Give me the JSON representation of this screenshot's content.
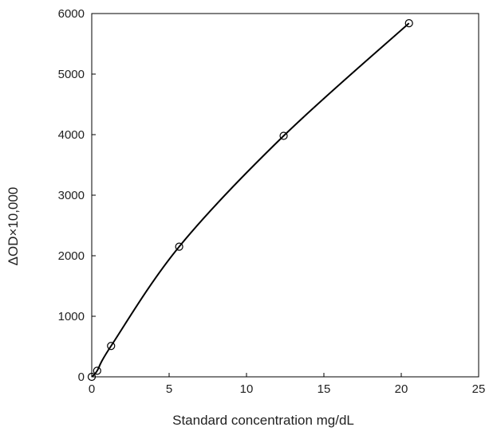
{
  "chart_data": {
    "type": "scatter",
    "title": "",
    "xlabel": "Standard concentration   mg/dL",
    "ylabel": "ΔOD×10,000",
    "xlim": [
      0,
      25
    ],
    "ylim": [
      0,
      6000
    ],
    "x_ticks": [
      "0",
      "5",
      "10",
      "15",
      "20",
      "25"
    ],
    "y_ticks": [
      "0",
      "1000",
      "2000",
      "3000",
      "4000",
      "5000",
      "6000"
    ],
    "grid": false,
    "legend": "none",
    "line_color": "#000000",
    "series": [
      {
        "points": [
          {
            "x": 0.0,
            "y": 0
          },
          {
            "x": 0.35,
            "y": 100
          },
          {
            "x": 1.25,
            "y": 510
          },
          {
            "x": 5.65,
            "y": 2150
          },
          {
            "x": 12.4,
            "y": 3980
          },
          {
            "x": 20.5,
            "y": 5840
          }
        ]
      }
    ]
  }
}
